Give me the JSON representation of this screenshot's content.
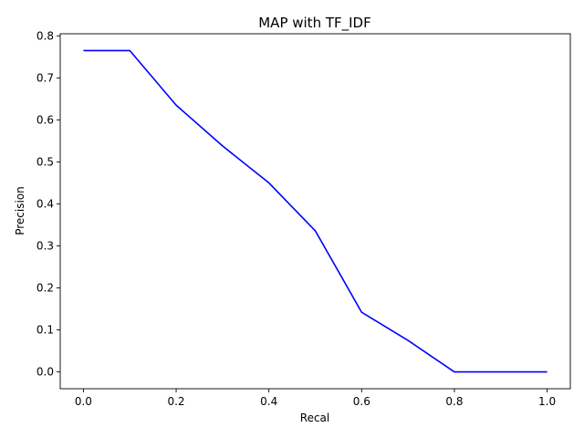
{
  "chart_data": {
    "type": "line",
    "title": "MAP with TF_IDF",
    "xlabel": "Recal",
    "ylabel": "Precision",
    "xlim": [
      -0.05,
      1.05
    ],
    "ylim": [
      -0.04,
      0.805
    ],
    "xticks": [
      0.0,
      0.2,
      0.4,
      0.6,
      0.8,
      1.0
    ],
    "xtick_labels": [
      "0.0",
      "0.2",
      "0.4",
      "0.6",
      "0.8",
      "1.0"
    ],
    "yticks": [
      0.0,
      0.1,
      0.2,
      0.3,
      0.4,
      0.5,
      0.6,
      0.7,
      0.8
    ],
    "ytick_labels": [
      "0.0",
      "0.1",
      "0.2",
      "0.3",
      "0.4",
      "0.5",
      "0.6",
      "0.7",
      "0.8"
    ],
    "grid": false,
    "series": [
      {
        "color": "#0000ff",
        "x": [
          0.0,
          0.1,
          0.2,
          0.3,
          0.4,
          0.5,
          0.6,
          0.7,
          0.8,
          0.9,
          1.0
        ],
        "y": [
          0.765,
          0.765,
          0.635,
          0.538,
          0.45,
          0.336,
          0.142,
          0.075,
          0.0,
          0.0,
          0.0
        ]
      }
    ]
  }
}
